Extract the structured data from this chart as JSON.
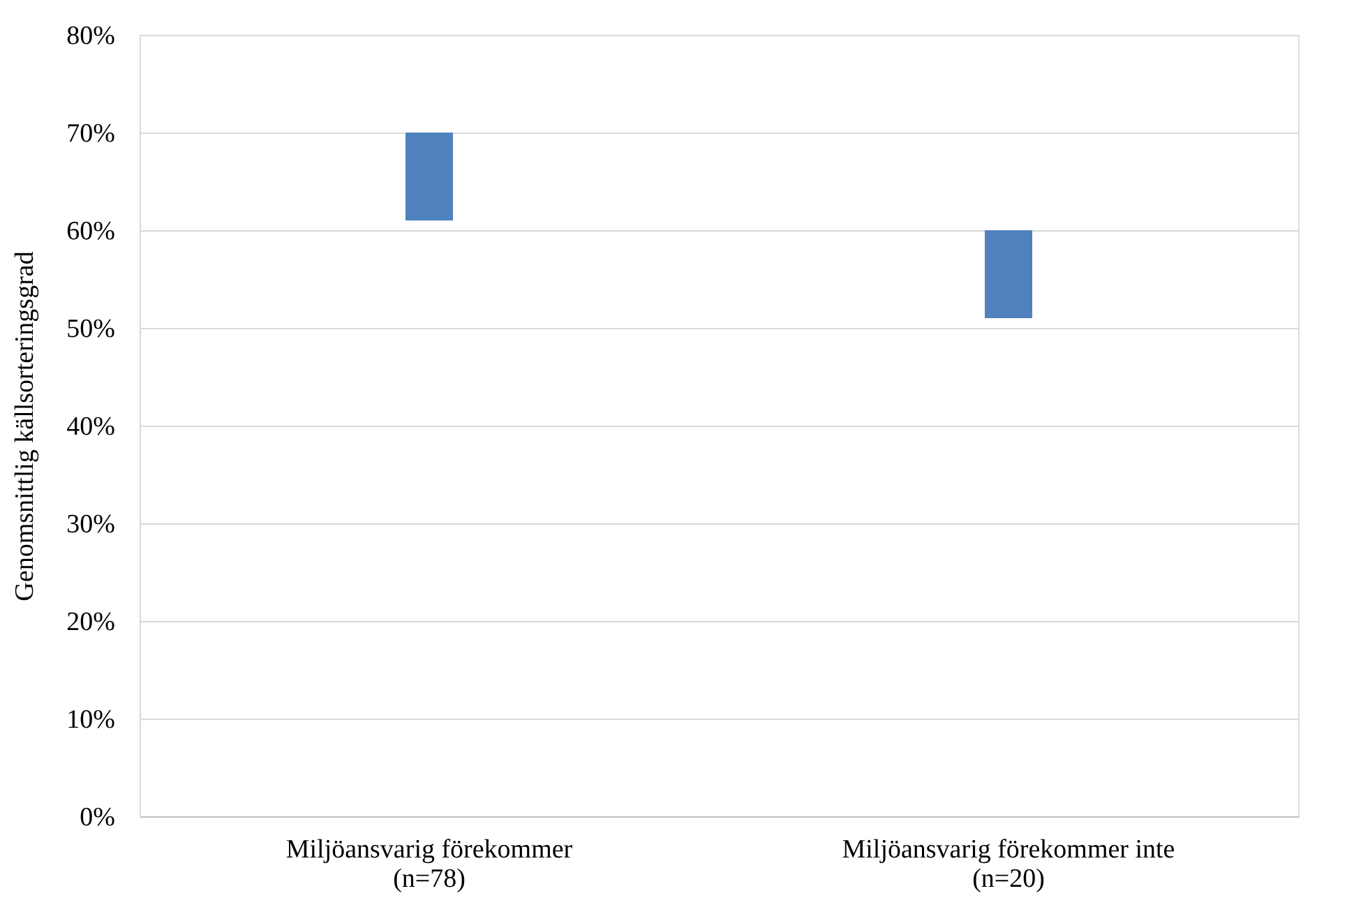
{
  "chart_data": {
    "type": "bar",
    "categories": [
      "Miljöansvarig förekommer\n(n=78)",
      "Miljöansvarig förekommer inte\n(n=20)"
    ],
    "base": [
      61,
      51
    ],
    "values": [
      9,
      9
    ],
    "colors": [
      "#4f81bd",
      "#4f81bd"
    ],
    "ylabel": "Genomsnittlig källsorteringsgrad",
    "ylim": [
      0,
      80
    ],
    "yticks": [
      {
        "value": 0,
        "label": "0%"
      },
      {
        "value": 10,
        "label": "10%"
      },
      {
        "value": 20,
        "label": "20%"
      },
      {
        "value": 30,
        "label": "30%"
      },
      {
        "value": 40,
        "label": "40%"
      },
      {
        "value": 50,
        "label": "50%"
      },
      {
        "value": 60,
        "label": "60%"
      },
      {
        "value": 70,
        "label": "70%"
      },
      {
        "value": 80,
        "label": "80%"
      }
    ],
    "grid": "y"
  }
}
